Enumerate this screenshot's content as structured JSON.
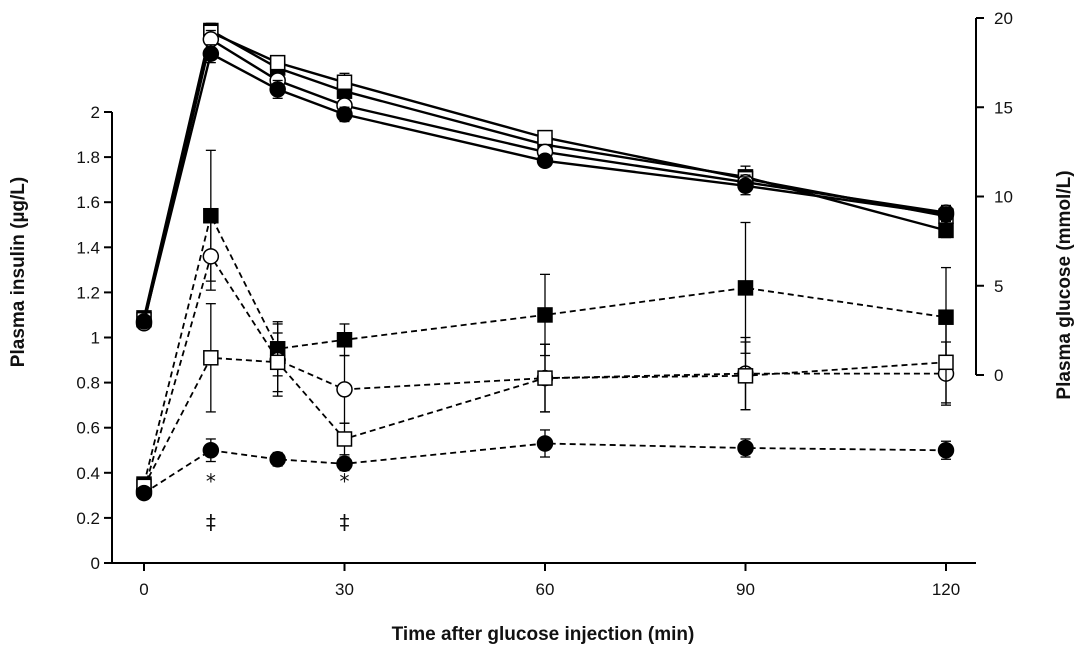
{
  "chart_data": {
    "type": "line",
    "title": "",
    "xlabel": "Time after glucose injection (min)",
    "ylabel_left": "Plasma insulin (µg/L)",
    "ylabel_right": "Plasma glucose (mmol/L)",
    "x_ticks": [
      "0",
      "30",
      "60",
      "90",
      "120"
    ],
    "y_left_ticks": [
      "0",
      "0.2",
      "0.4",
      "0.6",
      "0.8",
      "1",
      "1.2",
      "1.4",
      "1.6",
      "1.8",
      "2"
    ],
    "y_right_ticks": [
      "0",
      "5",
      "10",
      "15",
      "20"
    ],
    "xlim": [
      0,
      120
    ],
    "ylim_left": [
      0,
      2
    ],
    "ylim_right": [
      0,
      20
    ],
    "grid": false,
    "legend": "none",
    "annotations": [
      {
        "text": "*",
        "x": 10,
        "y": 0.33
      },
      {
        "text": "‡",
        "x": 10,
        "y": 0.15
      },
      {
        "text": "*",
        "x": 30,
        "y": 0.33
      },
      {
        "text": "‡",
        "x": 30,
        "y": 0.15
      }
    ],
    "series": [
      {
        "marker": "filled-square",
        "axis": "left",
        "style": "dashed",
        "x": [
          0,
          10,
          20,
          30,
          60,
          90,
          120
        ],
        "y": [
          0.35,
          1.54,
          0.95,
          0.99,
          1.1,
          1.22,
          1.09
        ],
        "err": [
          0.03,
          0.29,
          0.12,
          0.07,
          0.18,
          0.29,
          0.22
        ]
      },
      {
        "marker": "open-circle",
        "axis": "left",
        "style": "dashed",
        "x": [
          0,
          10,
          20,
          30,
          60,
          90,
          120
        ],
        "y": [
          0.32,
          1.36,
          0.9,
          0.77,
          0.82,
          0.84,
          0.84
        ],
        "err": [
          0.03,
          0.15,
          0.16,
          0.15,
          0.15,
          0.16,
          0.14
        ]
      },
      {
        "marker": "open-square",
        "axis": "left",
        "style": "dashed",
        "x": [
          0,
          10,
          20,
          30,
          60,
          90,
          120
        ],
        "y": [
          0.34,
          0.91,
          0.89,
          0.55,
          0.82,
          0.83,
          0.89
        ],
        "err": [
          0.03,
          0.24,
          0.13,
          0.07,
          0.15,
          0.15,
          0.18
        ]
      },
      {
        "marker": "filled-circle",
        "axis": "left",
        "style": "dashed",
        "x": [
          0,
          10,
          20,
          30,
          60,
          90,
          120
        ],
        "y": [
          0.31,
          0.5,
          0.46,
          0.44,
          0.53,
          0.51,
          0.5
        ],
        "err": [
          0.02,
          0.05,
          0.03,
          0.03,
          0.06,
          0.04,
          0.04
        ]
      },
      {
        "marker": "filled-square",
        "axis": "right",
        "style": "solid",
        "x": [
          0,
          10,
          20,
          30,
          60,
          90,
          120
        ],
        "y": [
          3.2,
          19.3,
          17.2,
          15.9,
          12.9,
          11.1,
          8.1
        ],
        "err": [
          0.2,
          0.4,
          0.5,
          0.7,
          0.3,
          0.6,
          0.4
        ]
      },
      {
        "marker": "open-square",
        "axis": "right",
        "style": "solid",
        "x": [
          0,
          10,
          20,
          30,
          60,
          90,
          120
        ],
        "y": [
          3.1,
          19.2,
          17.5,
          16.4,
          13.3,
          11.0,
          8.9
        ],
        "err": [
          0.2,
          0.4,
          0.3,
          0.5,
          0.3,
          0.4,
          0.4
        ]
      },
      {
        "marker": "open-circle",
        "axis": "right",
        "style": "solid",
        "x": [
          0,
          10,
          20,
          30,
          60,
          90,
          120
        ],
        "y": [
          2.9,
          18.8,
          16.5,
          15.1,
          12.5,
          10.8,
          9.1
        ],
        "err": [
          0.2,
          0.5,
          0.4,
          0.5,
          0.3,
          0.4,
          0.4
        ]
      },
      {
        "marker": "filled-circle",
        "axis": "right",
        "style": "solid",
        "x": [
          0,
          10,
          20,
          30,
          60,
          90,
          120
        ],
        "y": [
          3.0,
          18.0,
          16.0,
          14.6,
          12.0,
          10.6,
          9.0
        ],
        "err": [
          0.2,
          0.5,
          0.5,
          0.4,
          0.3,
          0.5,
          0.4
        ]
      }
    ]
  }
}
